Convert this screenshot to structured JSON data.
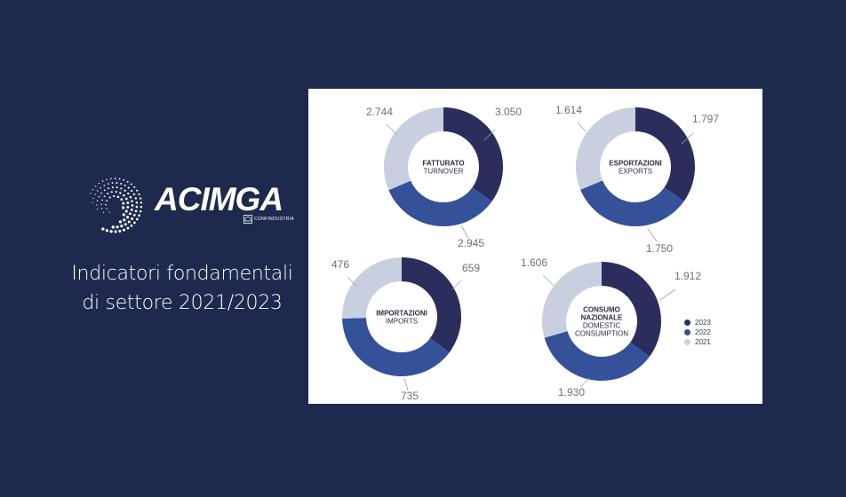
{
  "brand": {
    "name": "ACIMGA",
    "sub": "CONFINDUSTRIA"
  },
  "headline": {
    "line1": "Indicatori fondamentali",
    "line2": "di settore 2021/2023"
  },
  "colors": {
    "background": "#1e2a4d",
    "y2023": "#2b2d5c",
    "y2022": "#34519a",
    "y2021": "#c8d0e0"
  },
  "chart_data": [
    {
      "type": "pie",
      "donut": true,
      "title_lines": [
        "FATTURATO",
        "TURNOVER"
      ],
      "labels": [
        "2023",
        "2022",
        "2021"
      ],
      "values": [
        3050,
        2945,
        2744
      ],
      "display_values": [
        "3.050",
        "2.945",
        "2.744"
      ]
    },
    {
      "type": "pie",
      "donut": true,
      "title_lines": [
        "ESPORTAZIONI",
        "EXPORTS"
      ],
      "labels": [
        "2023",
        "2022",
        "2021"
      ],
      "values": [
        1797,
        1750,
        1614
      ],
      "display_values": [
        "1.797",
        "1.750",
        "1.614"
      ]
    },
    {
      "type": "pie",
      "donut": true,
      "title_lines": [
        "IMPORTAZIONI",
        "IMPORTS"
      ],
      "labels": [
        "2023",
        "2022",
        "2021"
      ],
      "values": [
        659,
        735,
        476
      ],
      "display_values": [
        "659",
        "735",
        "476"
      ]
    },
    {
      "type": "pie",
      "donut": true,
      "title_lines": [
        "CONSUMO",
        "NAZIONALE",
        "DOMESTIC",
        "CONSUMPTION"
      ],
      "labels": [
        "2023",
        "2022",
        "2021"
      ],
      "values": [
        1912,
        1930,
        1606
      ],
      "display_values": [
        "1.912",
        "1.930",
        "1.606"
      ]
    }
  ],
  "legend": {
    "items": [
      {
        "label": "2023",
        "color": "#2b2d5c"
      },
      {
        "label": "2022",
        "color": "#34519a"
      },
      {
        "label": "2021",
        "color": "#c8d0e0"
      }
    ]
  }
}
